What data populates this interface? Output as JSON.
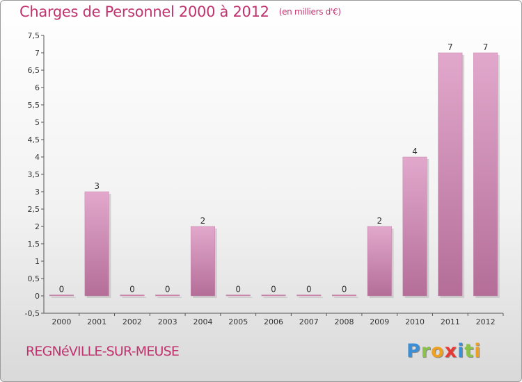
{
  "header": {
    "title": "Charges de Personnel 2000 à 2012",
    "subtitle": "(en milliers d'€)"
  },
  "footer": {
    "place": "REGNéVILLE-SUR-MEUSE",
    "logo_letters": [
      "P",
      "r",
      "o",
      "x",
      "i",
      "t",
      "i"
    ],
    "logo_colors": [
      "#3b8fd6",
      "#8bc34a",
      "#f0a020",
      "#e53935",
      "#3b8fd6",
      "#8bc34a",
      "#f0a020"
    ]
  },
  "colors": {
    "bar_top": "#e2a8cc",
    "bar_bottom": "#b46e98",
    "text": "#c0336e"
  },
  "chart_data": {
    "type": "bar",
    "categories": [
      "2000",
      "2001",
      "2002",
      "2003",
      "2004",
      "2005",
      "2006",
      "2007",
      "2008",
      "2009",
      "2010",
      "2011",
      "2012"
    ],
    "values": [
      0,
      3,
      0,
      0,
      2,
      0,
      0,
      0,
      0,
      2,
      4,
      7,
      7
    ],
    "data_labels": [
      "0",
      "3",
      "0",
      "0",
      "2",
      "0",
      "0",
      "0",
      "0",
      "2",
      "4",
      "7",
      "7"
    ],
    "y_ticks": [
      "-0,5",
      "0",
      "0,5",
      "1",
      "1,5",
      "2",
      "2,5",
      "3",
      "3,5",
      "4",
      "4,5",
      "5",
      "5,5",
      "6",
      "6,5",
      "7",
      "7,5"
    ],
    "y_tick_values": [
      -0.5,
      0,
      0.5,
      1,
      1.5,
      2,
      2.5,
      3,
      3.5,
      4,
      4.5,
      5,
      5.5,
      6,
      6.5,
      7,
      7.5
    ],
    "ylim": [
      -0.5,
      7.5
    ],
    "xlabel": "",
    "ylabel": "",
    "grid": false
  }
}
